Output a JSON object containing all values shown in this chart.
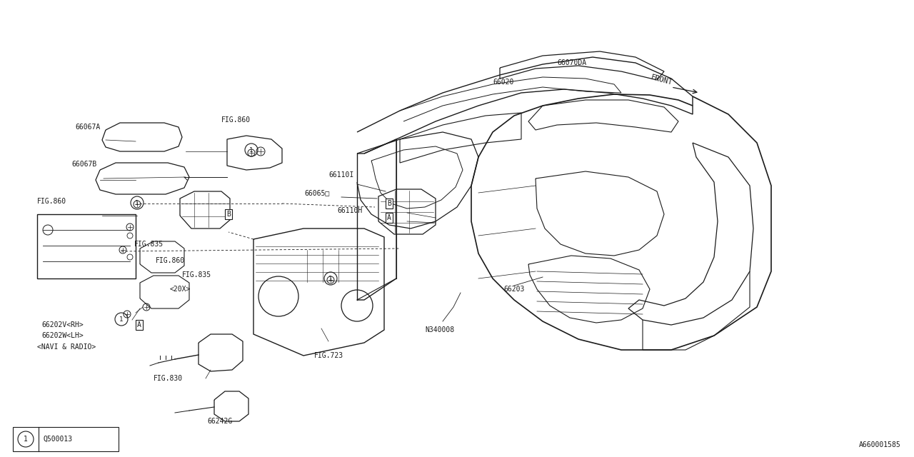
{
  "bg_color": "#ffffff",
  "line_color": "#1a1a1a",
  "fig_width": 12.8,
  "fig_height": 6.4,
  "bottom_left_box": {
    "circle_text": "1",
    "label_text": "Q500013"
  },
  "bottom_right_text": "A660001585"
}
